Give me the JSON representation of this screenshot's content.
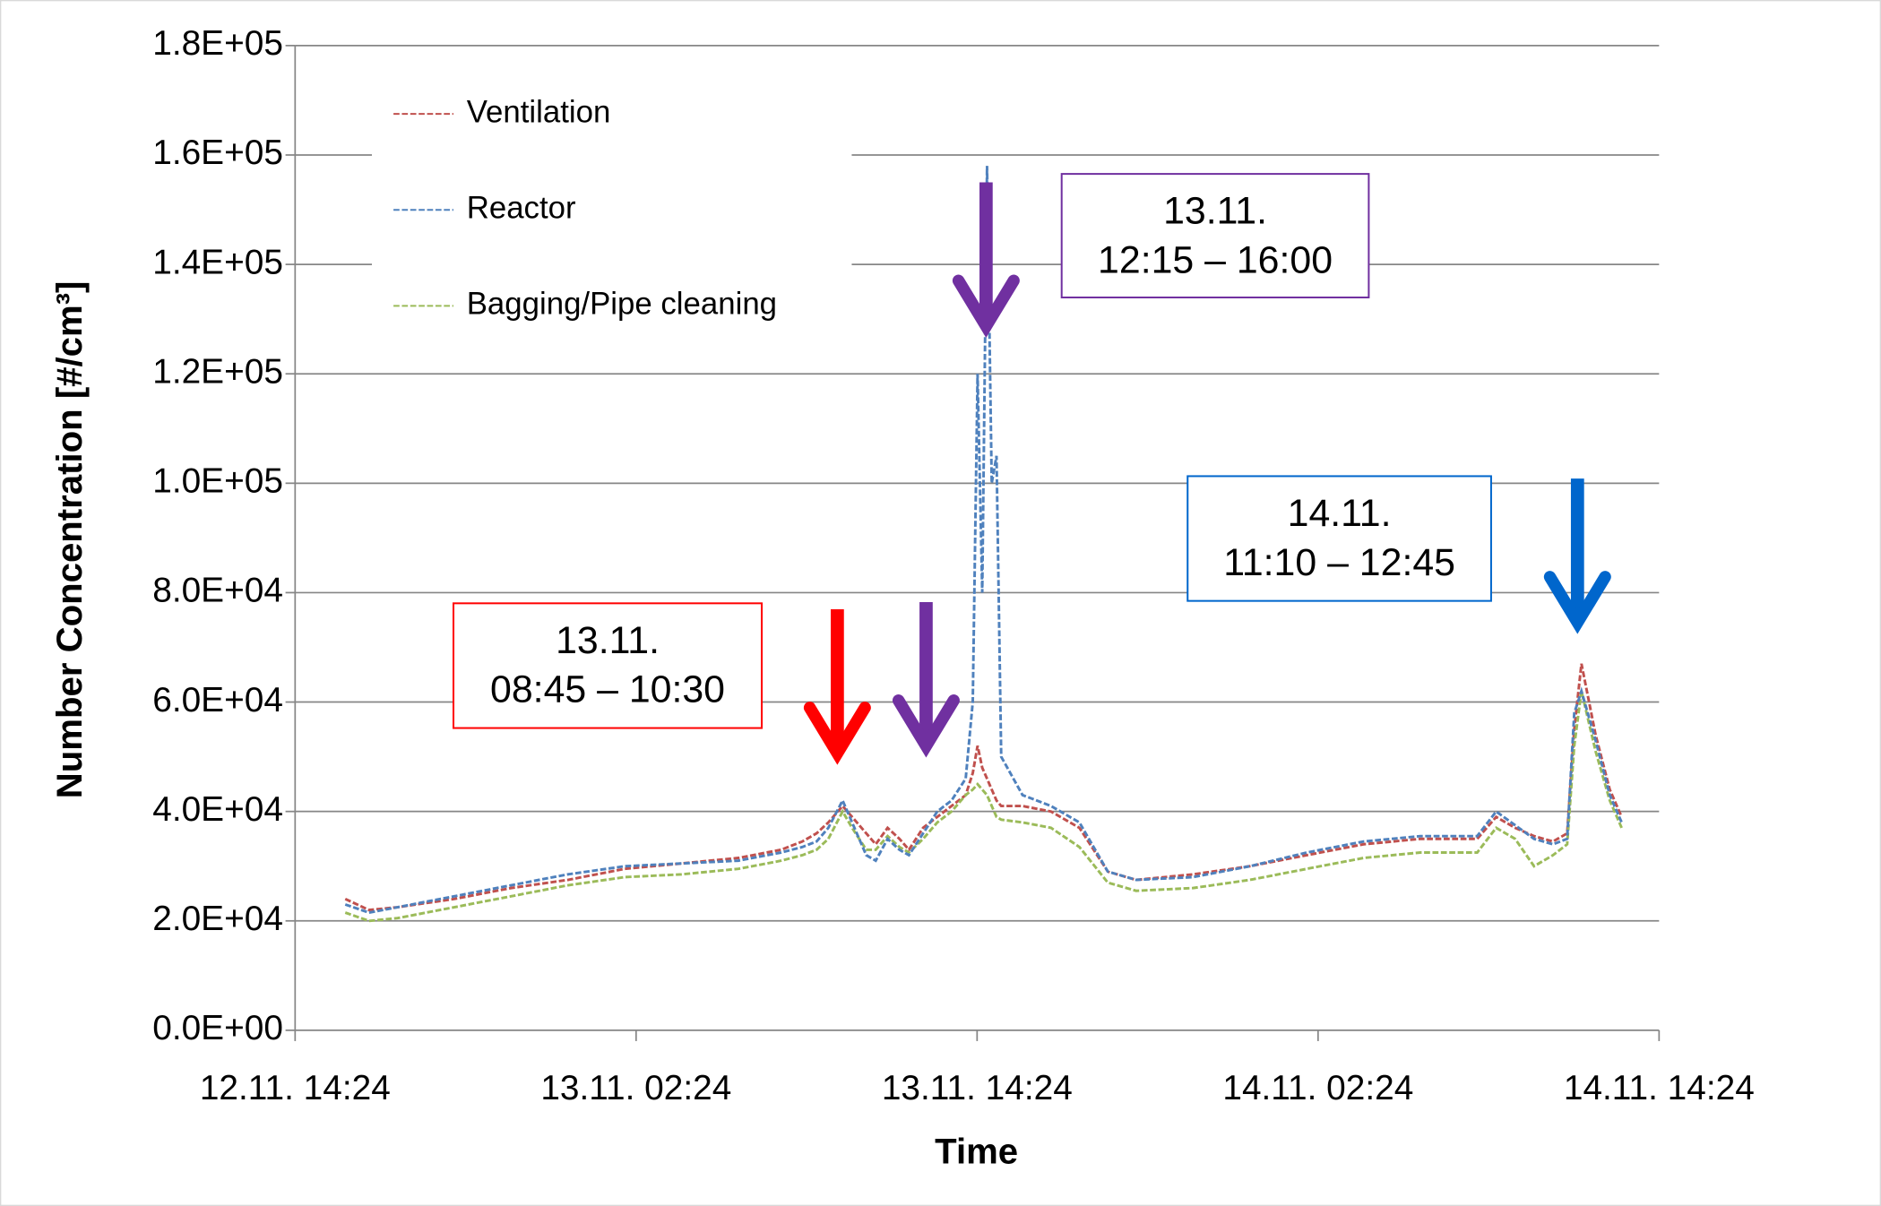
{
  "chart_data": {
    "type": "line",
    "ylabel": "Number Concentration [#/cm³]",
    "xlabel": "Time",
    "x": [
      "12.11. 16:10",
      "12.11. 17:00",
      "12.11. 18:00",
      "12.11. 20:00",
      "12.11. 22:00",
      "13.11. 00:00",
      "13.11. 02:00",
      "13.11. 04:00",
      "13.11. 06:00",
      "13.11. 07:30",
      "13.11. 08:15",
      "13.11. 08:45",
      "13.11. 09:10",
      "13.11. 09:40",
      "13.11. 10:00",
      "13.11. 10:30",
      "13.11. 10:50",
      "13.11. 11:15",
      "13.11. 11:40",
      "13.11. 12:00",
      "13.11. 12:30",
      "13.11. 13:00",
      "13.11. 13:30",
      "13.11. 14:00",
      "13.11. 14:15",
      "13.11. 14:25",
      "13.11. 14:35",
      "13.11. 14:45",
      "13.11. 14:55",
      "13.11. 15:05",
      "13.11. 15:15",
      "13.11. 16:00",
      "13.11. 17:00",
      "13.11. 18:00",
      "13.11. 19:00",
      "13.11. 20:00",
      "13.11. 22:00",
      "14.11. 00:00",
      "14.11. 02:00",
      "14.11. 04:00",
      "14.11. 06:00",
      "14.11. 08:00",
      "14.11. 08:40",
      "14.11. 09:20",
      "14.11. 10:00",
      "14.11. 10:40",
      "14.11. 11:10",
      "14.11. 11:25",
      "14.11. 11:40",
      "14.11. 12:10",
      "14.11. 12:40",
      "14.11. 13:05"
    ],
    "series": [
      {
        "name": "Ventilation",
        "color": "#c0504d",
        "values": [
          24000,
          22000,
          22500,
          24000,
          26000,
          27500,
          29500,
          30500,
          31500,
          33000,
          34500,
          36000,
          38000,
          41000,
          39000,
          36000,
          34000,
          37000,
          35000,
          33000,
          37000,
          39000,
          41000,
          43000,
          47000,
          52000,
          48000,
          46000,
          44000,
          42000,
          41000,
          41000,
          40000,
          37000,
          29000,
          27500,
          28500,
          30000,
          32000,
          34000,
          35000,
          35000,
          39000,
          37000,
          35500,
          34500,
          36000,
          55000,
          67000,
          54000,
          44000,
          39000
        ]
      },
      {
        "name": "Reactor",
        "color": "#4f81bd",
        "values": [
          23000,
          21500,
          22500,
          24500,
          26500,
          28500,
          30000,
          30500,
          31000,
          32500,
          33500,
          34500,
          37000,
          42000,
          38000,
          32000,
          31000,
          35000,
          33000,
          32000,
          36000,
          40000,
          42000,
          46000,
          60000,
          120000,
          80000,
          158000,
          100000,
          105000,
          50000,
          43000,
          41000,
          38000,
          29000,
          27500,
          28000,
          30000,
          32500,
          34500,
          35500,
          35500,
          40000,
          37500,
          35000,
          34000,
          35000,
          58000,
          62000,
          53000,
          43000,
          38000
        ]
      },
      {
        "name": "Bagging/Pipe cleaning",
        "color": "#9bbb59",
        "values": [
          21500,
          20000,
          20500,
          22500,
          24500,
          26500,
          28000,
          28500,
          29500,
          31000,
          32000,
          33000,
          35000,
          40000,
          37000,
          33000,
          33000,
          35500,
          33500,
          32500,
          35000,
          38000,
          40000,
          43000,
          44000,
          45000,
          44000,
          43000,
          41000,
          39000,
          38500,
          38000,
          37000,
          33500,
          27000,
          25500,
          26000,
          27500,
          29500,
          31500,
          32500,
          32500,
          37000,
          35000,
          30000,
          32000,
          34000,
          52000,
          62000,
          51000,
          42000,
          37000
        ]
      }
    ],
    "xlim": [
      "12.11. 14:24",
      "14.11. 14:24"
    ],
    "xticks": [
      "12.11. 14:24",
      "13.11. 02:24",
      "13.11. 14:24",
      "14.11. 02:24",
      "14.11. 14:24"
    ],
    "ylim": [
      0,
      180000
    ],
    "yticks": [
      {
        "value": 0,
        "label": "0.0E+00"
      },
      {
        "value": 20000,
        "label": "2.0E+04"
      },
      {
        "value": 40000,
        "label": "4.0E+04"
      },
      {
        "value": 60000,
        "label": "6.0E+04"
      },
      {
        "value": 80000,
        "label": "8.0E+04"
      },
      {
        "value": 100000,
        "label": "1.0E+05"
      },
      {
        "value": 120000,
        "label": "1.2E+05"
      },
      {
        "value": 140000,
        "label": "1.4E+05"
      },
      {
        "value": 160000,
        "label": "1.6E+05"
      },
      {
        "value": 180000,
        "label": "1.8E+05"
      }
    ],
    "grid": true,
    "legend": "upper left",
    "annotations": [
      {
        "lines": [
          "13.11.",
          "08:45 – 10:30"
        ],
        "color": "#ff0000"
      },
      {
        "lines": [
          "13.11.",
          "12:15 – 16:00"
        ],
        "color": "#7030a0"
      },
      {
        "lines": [
          "14.11.",
          "11:10 – 12:45"
        ],
        "color": "#0066cc"
      }
    ]
  }
}
